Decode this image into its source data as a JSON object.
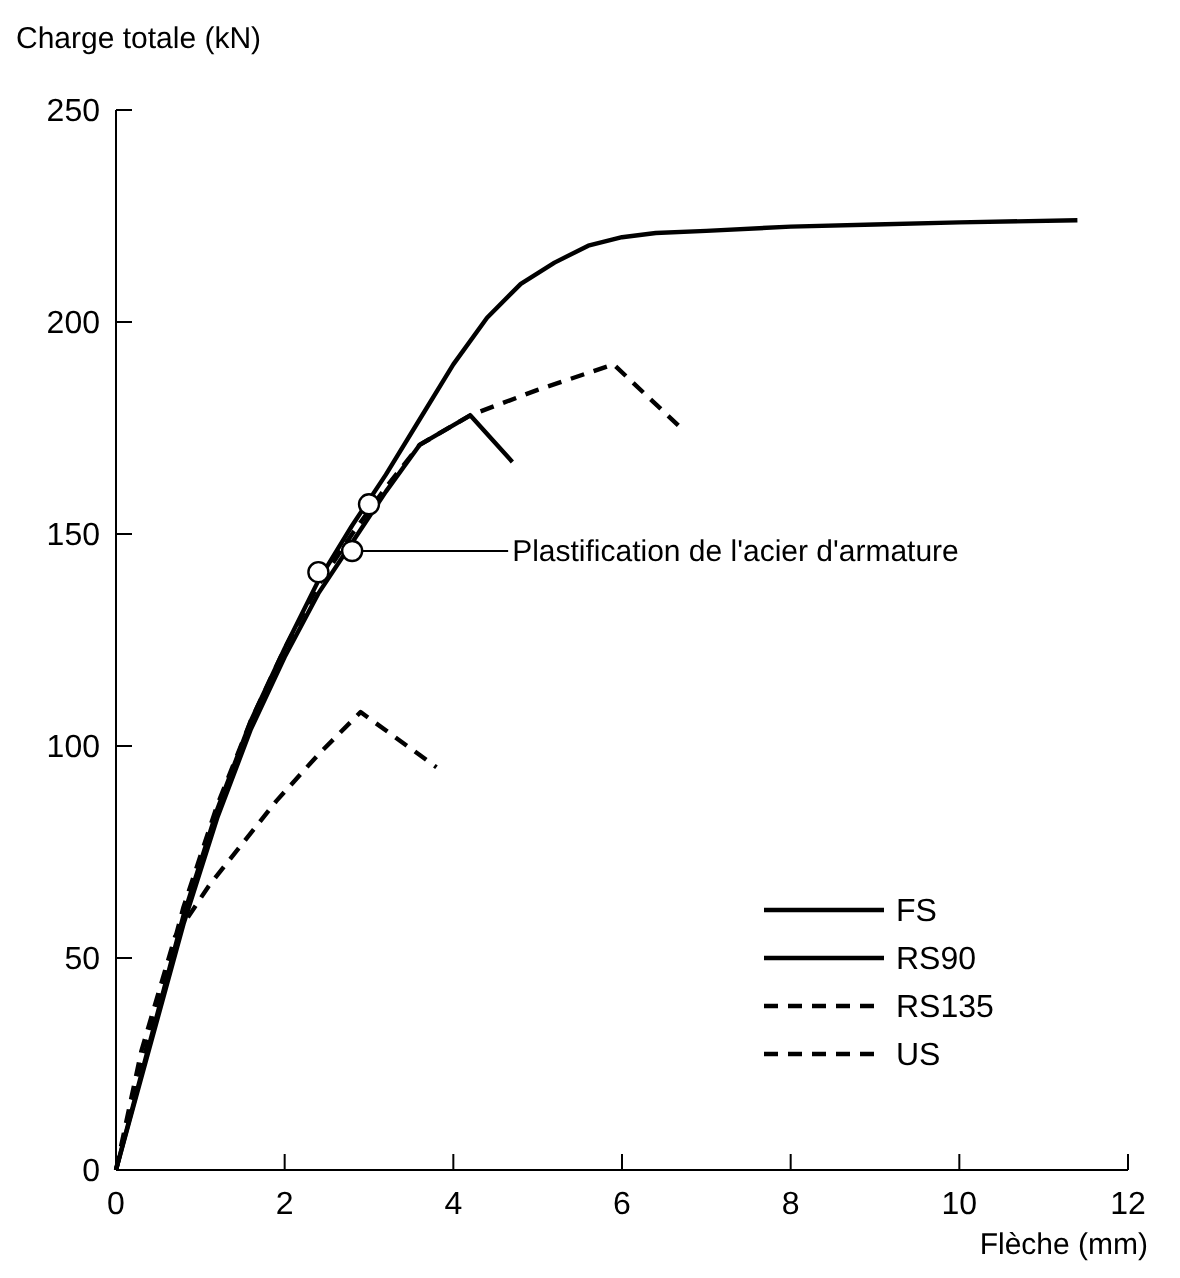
{
  "chart_data": {
    "type": "line",
    "xlabel": "Flèche (mm)",
    "ylabel": "Charge totale (kN)",
    "xlim": [
      0,
      12
    ],
    "xticks": [
      0,
      2,
      4,
      6,
      8,
      10,
      12
    ],
    "ylim": [
      0,
      250
    ],
    "yticks": [
      0,
      50,
      100,
      150,
      200,
      250
    ],
    "grid": false,
    "legend": "bottom right",
    "marker": "none",
    "annotations": [
      "Plastification de l'acier d'armature"
    ],
    "series": [
      {
        "name": "FS",
        "color": "#000000",
        "line_style": "solid",
        "x": [
          0,
          0.4,
          0.8,
          1.2,
          1.6,
          2,
          2.4,
          2.8,
          3.2,
          3.6,
          4,
          4.4,
          4.8,
          5.2,
          5.6,
          6,
          6.4,
          7,
          8,
          9,
          10,
          11.4
        ],
        "values": [
          0,
          30,
          60,
          85,
          106,
          123,
          139,
          152,
          164,
          177,
          190,
          201,
          209,
          214,
          218,
          220,
          221,
          221.5,
          222.5,
          223,
          223.5,
          224
        ]
      },
      {
        "name": "RS90",
        "color": "#000000",
        "line_style": "solid",
        "x": [
          0,
          0.4,
          0.8,
          1.2,
          1.6,
          2,
          2.4,
          2.8,
          3.2,
          3.6,
          4.2,
          4.7
        ],
        "values": [
          0,
          29,
          58,
          83,
          104,
          121,
          136,
          148,
          160,
          171,
          178,
          167
        ]
      },
      {
        "name": "RS135",
        "color": "#000000",
        "line_style": "dashed",
        "x": [
          0,
          0.4,
          0.8,
          1.2,
          1.6,
          2,
          2.4,
          2.8,
          3.2,
          3.6,
          4.2,
          5,
          5.9,
          6.7
        ],
        "values": [
          0,
          32,
          62,
          86,
          106,
          123,
          138,
          150,
          161,
          171,
          178,
          184,
          190,
          175
        ]
      },
      {
        "name": "US",
        "color": "#000000",
        "line_style": "dashed",
        "x": [
          0,
          0.3,
          0.7,
          1.1,
          1.5,
          1.9,
          2.4,
          2.9,
          3.8
        ],
        "values": [
          0,
          28,
          55,
          67,
          77,
          87,
          98,
          108,
          95
        ]
      },
      {
        "type": "scatter",
        "marker": "circle",
        "color": "#000000",
        "x": [
          2.4,
          2.8,
          3.0
        ],
        "values": [
          141,
          146,
          157
        ]
      }
    ]
  }
}
